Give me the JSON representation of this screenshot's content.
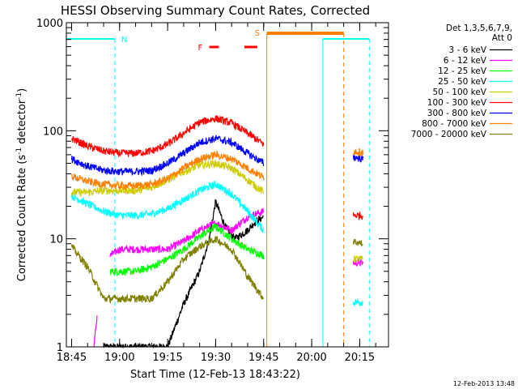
{
  "chart_data": {
    "type": "line",
    "title": "HESSI Observing Summary Count Rates, Corrected",
    "xlabel": "Start Time (12-Feb-13 18:43:22)",
    "ylabel_main": "Corrected Count Rate (s",
    "ylabel_sup1": "-1",
    "ylabel_mid": " detector",
    "ylabel_sup2": "-1",
    "ylabel_end": ")",
    "yscale": "log",
    "ylim": [
      1,
      1000
    ],
    "xlim": [
      "18:43:22",
      "20:24:00"
    ],
    "x_ticks": [
      "18:45",
      "19:00",
      "19:15",
      "19:30",
      "19:45",
      "20:00",
      "20:15"
    ],
    "y_ticks": [
      "1",
      "10",
      "100",
      "1000"
    ],
    "legend": {
      "placement": "right-outside",
      "header": [
        "Det 1,3,5,6,7,9,",
        "Att 0"
      ],
      "entries": [
        {
          "label": "3 - 6 keV",
          "color": "#000000"
        },
        {
          "label": "6 - 12 keV",
          "color": "#ff00ff"
        },
        {
          "label": "12 - 25 keV",
          "color": "#00ff00"
        },
        {
          "label": "25 - 50 keV",
          "color": "#00ffff"
        },
        {
          "label": "50 - 100 keV",
          "color": "#cccc00"
        },
        {
          "label": "100 - 300 keV",
          "color": "#ff0000"
        },
        {
          "label": "300 - 800 keV",
          "color": "#0000ff"
        },
        {
          "label": "800 - 7000 keV",
          "color": "#ff8000"
        },
        {
          "label": "7000 - 20000 keV",
          "color": "#808000"
        }
      ]
    },
    "annotations": {
      "night_label": "N",
      "saa_label": "S",
      "flare_label": "F",
      "night_color": "#00ffff",
      "saa_color": "#ff8000",
      "flare_color": "#ff0000"
    },
    "intervals": {
      "night": [
        [
          "18:43:22",
          "18:58:30"
        ],
        [
          "20:03:30",
          "20:18:00"
        ]
      ],
      "saa": [
        [
          "19:46:00",
          "20:10:00"
        ]
      ],
      "flare": [
        [
          "19:28:00",
          "19:31:00"
        ],
        [
          "19:39:00",
          "19:43:00"
        ]
      ]
    },
    "series": [
      {
        "name": "3 - 6 keV",
        "color": "#000000",
        "segments": [
          {
            "x": [
              "18:55",
              "19:00",
              "19:05",
              "19:10",
              "19:15",
              "19:20",
              "19:25",
              "19:28",
              "19:30",
              "19:33",
              "19:36",
              "19:40",
              "19:42",
              "19:45"
            ],
            "y": [
              1,
              1,
              1,
              1,
              1,
              2.5,
              5,
              10,
              22,
              13,
              10,
              12,
              14,
              16
            ]
          }
        ]
      },
      {
        "name": "6 - 12 keV",
        "color": "#ff00ff",
        "segments": [
          {
            "x": [
              "18:52",
              "18:53"
            ],
            "y": [
              1,
              2
            ]
          },
          {
            "x": [
              "18:57",
              "19:00",
              "19:05",
              "19:10",
              "19:15",
              "19:20",
              "19:25",
              "19:30",
              "19:35",
              "19:40",
              "19:45"
            ],
            "y": [
              7,
              8,
              8,
              8,
              8,
              9.5,
              12,
              14,
              12,
              16,
              18
            ]
          },
          {
            "x": [
              "20:13",
              "20:16"
            ],
            "y": [
              6,
              6
            ]
          }
        ]
      },
      {
        "name": "12 - 25 keV",
        "color": "#00ff00",
        "segments": [
          {
            "x": [
              "18:57",
              "19:00",
              "19:05",
              "19:10",
              "19:15",
              "19:20",
              "19:25",
              "19:30",
              "19:35",
              "19:40",
              "19:45"
            ],
            "y": [
              5,
              5,
              5,
              5.5,
              6.5,
              8,
              10.5,
              13,
              10,
              8,
              7
            ]
          }
        ]
      },
      {
        "name": "25 - 50 keV",
        "color": "#00ffff",
        "segments": [
          {
            "x": [
              "18:45",
              "18:50",
              "18:55",
              "19:00",
              "19:05",
              "19:10",
              "19:15",
              "19:20",
              "19:25",
              "19:30",
              "19:35",
              "19:40",
              "19:45"
            ],
            "y": [
              25,
              21,
              18,
              16.5,
              16.5,
              17,
              19,
              23,
              28,
              32,
              26,
              18,
              12
            ]
          },
          {
            "x": [
              "20:13",
              "20:16"
            ],
            "y": [
              2.6,
              2.6
            ]
          }
        ]
      },
      {
        "name": "50 - 100 keV",
        "color": "#cccc00",
        "segments": [
          {
            "x": [
              "18:45",
              "18:50",
              "18:55",
              "19:00",
              "19:05",
              "19:10",
              "19:15",
              "19:20",
              "19:25",
              "19:30",
              "19:35",
              "19:40",
              "19:45"
            ],
            "y": [
              27,
              27,
              28,
              28,
              28,
              30,
              35,
              42,
              48,
              50,
              45,
              35,
              27
            ]
          },
          {
            "x": [
              "20:13",
              "20:16"
            ],
            "y": [
              6.5,
              6.5
            ]
          }
        ]
      },
      {
        "name": "100 - 300 keV",
        "color": "#ff0000",
        "segments": [
          {
            "x": [
              "18:45",
              "18:50",
              "18:55",
              "19:00",
              "19:05",
              "19:10",
              "19:15",
              "19:20",
              "19:25",
              "19:30",
              "19:35",
              "19:40",
              "19:45"
            ],
            "y": [
              85,
              72,
              65,
              62,
              62,
              65,
              75,
              95,
              120,
              130,
              118,
              95,
              75
            ]
          },
          {
            "x": [
              "20:13",
              "20:16"
            ],
            "y": [
              16.5,
              16.5
            ]
          }
        ]
      },
      {
        "name": "300 - 800 keV",
        "color": "#0000ff",
        "segments": [
          {
            "x": [
              "18:45",
              "18:50",
              "18:55",
              "19:00",
              "19:05",
              "19:10",
              "19:15",
              "19:20",
              "19:25",
              "19:30",
              "19:35",
              "19:40",
              "19:45"
            ],
            "y": [
              55,
              47,
              43,
              42,
              42,
              43,
              50,
              62,
              78,
              85,
              78,
              62,
              50
            ]
          },
          {
            "x": [
              "20:13",
              "20:16"
            ],
            "y": [
              57,
              55
            ]
          }
        ]
      },
      {
        "name": "800 - 7000 keV",
        "color": "#ff8000",
        "segments": [
          {
            "x": [
              "18:45",
              "18:50",
              "18:55",
              "19:00",
              "19:05",
              "19:10",
              "19:15",
              "19:20",
              "19:25",
              "19:30",
              "19:35",
              "19:40",
              "19:45"
            ],
            "y": [
              38,
              34,
              32,
              31,
              31,
              32,
              36,
              45,
              55,
              60,
              55,
              45,
              37
            ]
          },
          {
            "x": [
              "20:13",
              "20:16"
            ],
            "y": [
              65,
              63
            ]
          }
        ]
      },
      {
        "name": "7000 - 20000 keV",
        "color": "#808000",
        "segments": [
          {
            "x": [
              "18:45",
              "18:50",
              "18:55",
              "19:00",
              "19:05",
              "19:10",
              "19:15",
              "19:20",
              "19:25",
              "19:30",
              "19:35",
              "19:40",
              "19:45"
            ],
            "y": [
              8.5,
              5.5,
              2.8,
              2.8,
              2.8,
              2.8,
              4,
              6.5,
              8.5,
              10,
              8,
              4.5,
              2.8
            ]
          },
          {
            "x": [
              "20:13",
              "20:16"
            ],
            "y": [
              9.5,
              9
            ]
          }
        ]
      }
    ]
  },
  "footer": {
    "timestamp": "12-Feb-2013 13:48"
  }
}
